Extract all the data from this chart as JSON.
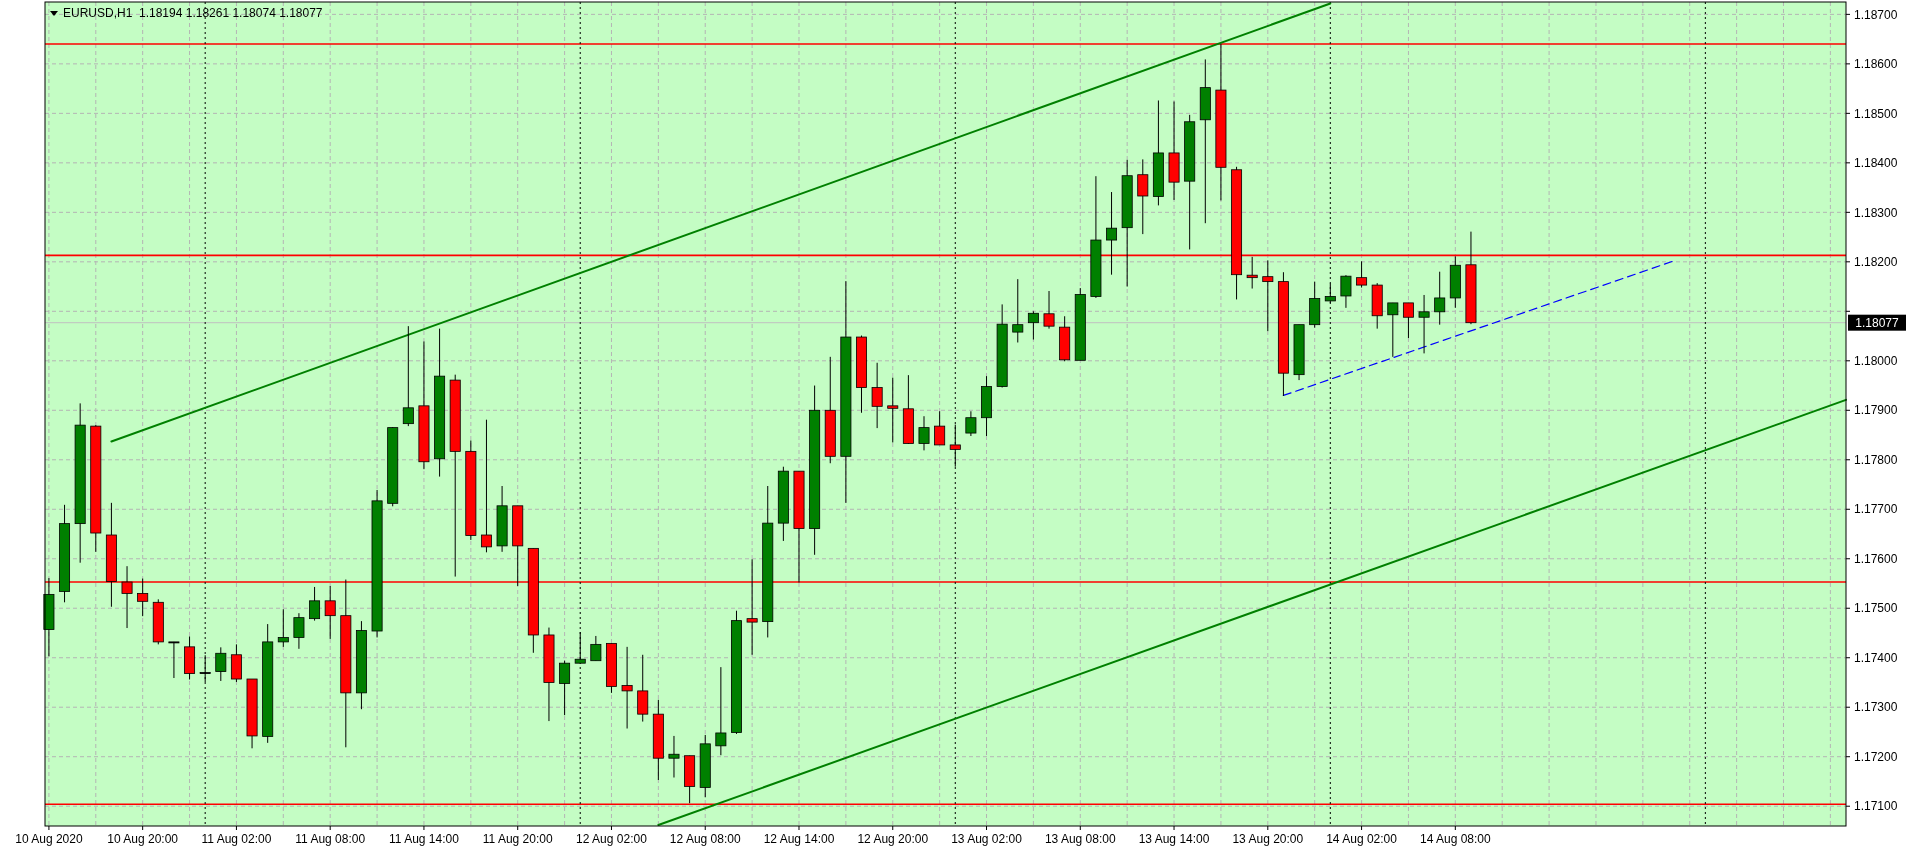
{
  "chart_data": {
    "type": "candlestick",
    "title": "EURUSD,H1  1.18194 1.18261 1.18074 1.18077",
    "x": [
      "2020-08-10T14:00",
      "2020-08-10T15:00",
      "2020-08-10T16:00",
      "2020-08-10T17:00",
      "2020-08-10T18:00",
      "2020-08-10T19:00",
      "2020-08-10T20:00",
      "2020-08-10T21:00",
      "2020-08-10T22:00",
      "2020-08-10T23:00",
      "2020-08-11T00:00",
      "2020-08-11T01:00",
      "2020-08-11T02:00",
      "2020-08-11T03:00",
      "2020-08-11T04:00",
      "2020-08-11T05:00",
      "2020-08-11T06:00",
      "2020-08-11T07:00",
      "2020-08-11T08:00",
      "2020-08-11T09:00",
      "2020-08-11T10:00",
      "2020-08-11T11:00",
      "2020-08-11T12:00",
      "2020-08-11T13:00",
      "2020-08-11T14:00",
      "2020-08-11T15:00",
      "2020-08-11T16:00",
      "2020-08-11T17:00",
      "2020-08-11T18:00",
      "2020-08-11T19:00",
      "2020-08-11T20:00",
      "2020-08-11T21:00",
      "2020-08-11T22:00",
      "2020-08-11T23:00",
      "2020-08-12T00:00",
      "2020-08-12T01:00",
      "2020-08-12T02:00",
      "2020-08-12T03:00",
      "2020-08-12T04:00",
      "2020-08-12T05:00",
      "2020-08-12T06:00",
      "2020-08-12T07:00",
      "2020-08-12T08:00",
      "2020-08-12T09:00",
      "2020-08-12T10:00",
      "2020-08-12T11:00",
      "2020-08-12T12:00",
      "2020-08-12T13:00",
      "2020-08-12T14:00",
      "2020-08-12T15:00",
      "2020-08-12T16:00",
      "2020-08-12T17:00",
      "2020-08-12T18:00",
      "2020-08-12T19:00",
      "2020-08-12T20:00",
      "2020-08-12T21:00",
      "2020-08-12T22:00",
      "2020-08-12T23:00",
      "2020-08-13T00:00",
      "2020-08-13T01:00",
      "2020-08-13T02:00",
      "2020-08-13T03:00",
      "2020-08-13T04:00",
      "2020-08-13T05:00",
      "2020-08-13T06:00",
      "2020-08-13T07:00",
      "2020-08-13T08:00",
      "2020-08-13T09:00",
      "2020-08-13T10:00",
      "2020-08-13T11:00",
      "2020-08-13T12:00",
      "2020-08-13T13:00",
      "2020-08-13T14:00",
      "2020-08-13T15:00",
      "2020-08-13T16:00",
      "2020-08-13T17:00",
      "2020-08-13T18:00",
      "2020-08-13T19:00",
      "2020-08-13T20:00",
      "2020-08-13T21:00",
      "2020-08-13T22:00",
      "2020-08-13T23:00",
      "2020-08-14T00:00",
      "2020-08-14T01:00",
      "2020-08-14T02:00",
      "2020-08-14T03:00",
      "2020-08-14T04:00",
      "2020-08-14T05:00",
      "2020-08-14T06:00",
      "2020-08-14T07:00",
      "2020-08-14T08:00",
      "2020-08-14T09:00"
    ],
    "ohlc": [
      [
        1.17457,
        1.17561,
        1.17403,
        1.17528
      ],
      [
        1.17534,
        1.17709,
        1.17512,
        1.17671
      ],
      [
        1.17671,
        1.17914,
        1.17592,
        1.1787
      ],
      [
        1.17868,
        1.1787,
        1.17614,
        1.17652
      ],
      [
        1.17648,
        1.17713,
        1.17503,
        1.17554
      ],
      [
        1.17553,
        1.17585,
        1.1746,
        1.1753
      ],
      [
        1.1753,
        1.1756,
        1.17484,
        1.17514
      ],
      [
        1.17512,
        1.17518,
        1.17427,
        1.17432
      ],
      [
        1.17432,
        1.17432,
        1.17359,
        1.17432
      ],
      [
        1.17422,
        1.17443,
        1.17356,
        1.17368
      ],
      [
        1.1737,
        1.17405,
        1.17351,
        1.1737
      ],
      [
        1.17372,
        1.17421,
        1.17353,
        1.17409
      ],
      [
        1.17406,
        1.17427,
        1.17351,
        1.17357
      ],
      [
        1.17357,
        1.17357,
        1.17217,
        1.17242
      ],
      [
        1.17241,
        1.17468,
        1.17228,
        1.17432
      ],
      [
        1.17432,
        1.17498,
        1.17422,
        1.17441
      ],
      [
        1.17441,
        1.1749,
        1.17418,
        1.17481
      ],
      [
        1.17479,
        1.17543,
        1.17475,
        1.17515
      ],
      [
        1.17515,
        1.17545,
        1.17438,
        1.17485
      ],
      [
        1.17485,
        1.17558,
        1.17219,
        1.17329
      ],
      [
        1.17329,
        1.17474,
        1.17296,
        1.17455
      ],
      [
        1.17454,
        1.17739,
        1.17441,
        1.17717
      ],
      [
        1.17712,
        1.17866,
        1.17706,
        1.17865
      ],
      [
        1.17873,
        1.1807,
        1.17868,
        1.17905
      ],
      [
        1.17909,
        1.18039,
        1.17781,
        1.17796
      ],
      [
        1.17802,
        1.18065,
        1.17766,
        1.17969
      ],
      [
        1.17961,
        1.17972,
        1.17564,
        1.17817
      ],
      [
        1.17817,
        1.17839,
        1.17638,
        1.17647
      ],
      [
        1.17648,
        1.17881,
        1.17613,
        1.17624
      ],
      [
        1.17626,
        1.17747,
        1.17614,
        1.17707
      ],
      [
        1.17707,
        1.17707,
        1.17545,
        1.17626
      ],
      [
        1.17621,
        1.17621,
        1.1741,
        1.17446
      ],
      [
        1.17446,
        1.17461,
        1.17272,
        1.1735
      ],
      [
        1.17348,
        1.17394,
        1.17284,
        1.17389
      ],
      [
        1.17389,
        1.17452,
        1.17389,
        1.17397
      ],
      [
        1.17394,
        1.17444,
        1.17394,
        1.17427
      ],
      [
        1.17429,
        1.17429,
        1.17329,
        1.17342
      ],
      [
        1.17344,
        1.17422,
        1.17257,
        1.17333
      ],
      [
        1.17333,
        1.17406,
        1.17271,
        1.17286
      ],
      [
        1.17286,
        1.17315,
        1.17153,
        1.17197
      ],
      [
        1.17197,
        1.17242,
        1.17158,
        1.17205
      ],
      [
        1.17202,
        1.17202,
        1.17106,
        1.1714
      ],
      [
        1.17138,
        1.17244,
        1.17118,
        1.17226
      ],
      [
        1.17222,
        1.17381,
        1.17203,
        1.17248
      ],
      [
        1.17249,
        1.17495,
        1.17246,
        1.17475
      ],
      [
        1.17479,
        1.17599,
        1.17406,
        1.17472
      ],
      [
        1.17473,
        1.17747,
        1.17441,
        1.17672
      ],
      [
        1.17672,
        1.17786,
        1.17636,
        1.17777
      ],
      [
        1.17777,
        1.17777,
        1.17552,
        1.17661
      ],
      [
        1.17661,
        1.1795,
        1.17608,
        1.179
      ],
      [
        1.179,
        1.18008,
        1.17793,
        1.17807
      ],
      [
        1.17807,
        1.18161,
        1.17713,
        1.18048
      ],
      [
        1.18048,
        1.18051,
        1.17895,
        1.17946
      ],
      [
        1.17946,
        1.17996,
        1.17864,
        1.17908
      ],
      [
        1.17909,
        1.17966,
        1.17835,
        1.17904
      ],
      [
        1.17903,
        1.17971,
        1.17832,
        1.17833
      ],
      [
        1.17833,
        1.17888,
        1.17819,
        1.17865
      ],
      [
        1.17868,
        1.17898,
        1.1783,
        1.1783
      ],
      [
        1.1783,
        1.17871,
        1.17786,
        1.17821
      ],
      [
        1.17854,
        1.17898,
        1.17848,
        1.17885
      ],
      [
        1.17885,
        1.17969,
        1.17848,
        1.17948
      ],
      [
        1.17948,
        1.18114,
        1.17946,
        1.18074
      ],
      [
        1.18058,
        1.18165,
        1.18037,
        1.18073
      ],
      [
        1.18077,
        1.181,
        1.18043,
        1.18096
      ],
      [
        1.18095,
        1.18141,
        1.18065,
        1.1807
      ],
      [
        1.18068,
        1.1809,
        1.17999,
        1.18002
      ],
      [
        1.18001,
        1.18147,
        1.18001,
        1.18134
      ],
      [
        1.1813,
        1.18373,
        1.18127,
        1.18244
      ],
      [
        1.18244,
        1.18341,
        1.18174,
        1.18268
      ],
      [
        1.18269,
        1.18406,
        1.1815,
        1.18374
      ],
      [
        1.18376,
        1.18407,
        1.18256,
        1.18333
      ],
      [
        1.18332,
        1.18526,
        1.18314,
        1.1842
      ],
      [
        1.1842,
        1.18524,
        1.18325,
        1.18361
      ],
      [
        1.18363,
        1.18497,
        1.18225,
        1.18483
      ],
      [
        1.18487,
        1.18609,
        1.18278,
        1.18552
      ],
      [
        1.18547,
        1.1864,
        1.18324,
        1.18391
      ],
      [
        1.18386,
        1.18392,
        1.18124,
        1.18174
      ],
      [
        1.18173,
        1.1821,
        1.18146,
        1.18168
      ],
      [
        1.1817,
        1.18203,
        1.1806,
        1.1816
      ],
      [
        1.1816,
        1.18179,
        1.17929,
        1.17975
      ],
      [
        1.17972,
        1.18073,
        1.17961,
        1.18073
      ],
      [
        1.18073,
        1.1816,
        1.18067,
        1.18126
      ],
      [
        1.18121,
        1.18156,
        1.18117,
        1.1813
      ],
      [
        1.18131,
        1.18173,
        1.18107,
        1.18171
      ],
      [
        1.18168,
        1.18201,
        1.18148,
        1.18153
      ],
      [
        1.18153,
        1.18157,
        1.18065,
        1.18091
      ],
      [
        1.18093,
        1.18117,
        1.18008,
        1.18117
      ],
      [
        1.18117,
        1.18117,
        1.18046,
        1.18088
      ],
      [
        1.18088,
        1.18133,
        1.18015,
        1.18099
      ],
      [
        1.18099,
        1.1818,
        1.18073,
        1.18127
      ],
      [
        1.18127,
        1.18211,
        1.18107,
        1.18193
      ],
      [
        1.18194,
        1.18261,
        1.18074,
        1.18077
      ]
    ],
    "colors": [
      "#008000",
      "#008000",
      "#008000",
      "#ff0000",
      "#ff0000",
      "#ff0000",
      "#ff0000",
      "#ff0000",
      "#000000",
      "#ff0000",
      "#000000",
      "#008000",
      "#ff0000",
      "#ff0000",
      "#008000",
      "#008000",
      "#008000",
      "#008000",
      "#ff0000",
      "#ff0000",
      "#008000",
      "#008000",
      "#008000",
      "#008000",
      "#ff0000",
      "#008000",
      "#ff0000",
      "#ff0000",
      "#ff0000",
      "#008000",
      "#ff0000",
      "#ff0000",
      "#ff0000",
      "#008000",
      "#008000",
      "#008000",
      "#ff0000",
      "#ff0000",
      "#ff0000",
      "#ff0000",
      "#008000",
      "#ff0000",
      "#008000",
      "#008000",
      "#008000",
      "#ff0000",
      "#008000",
      "#008000",
      "#ff0000",
      "#008000",
      "#ff0000",
      "#008000",
      "#ff0000",
      "#ff0000",
      "#ff0000",
      "#ff0000",
      "#008000",
      "#ff0000",
      "#ff0000",
      "#008000",
      "#008000",
      "#008000",
      "#008000",
      "#008000",
      "#ff0000",
      "#ff0000",
      "#008000",
      "#008000",
      "#008000",
      "#008000",
      "#ff0000",
      "#008000",
      "#ff0000",
      "#008000",
      "#008000",
      "#ff0000",
      "#ff0000",
      "#ff0000",
      "#ff0000",
      "#ff0000",
      "#008000",
      "#008000",
      "#008000",
      "#008000",
      "#ff0000",
      "#ff0000",
      "#008000",
      "#ff0000",
      "#008000",
      "#008000",
      "#008000",
      "#ff0000"
    ],
    "series": [
      {
        "type": "line",
        "color": "#008000",
        "x": [
          "2020-08-10T18:00",
          "2020-08-14T00:00"
        ],
        "values": [
          1.17837,
          1.18722
        ]
      },
      {
        "type": "line",
        "color": "#008000",
        "x": [
          "2020-08-12T05:00",
          "2020-08-15T09:00"
        ],
        "values": [
          1.17062,
          1.17921
        ]
      },
      {
        "type": "line",
        "color": "#0000ff",
        "line_style": "dashed",
        "x": [
          "2020-08-13T21:00",
          "2020-08-14T22:00"
        ],
        "values": [
          1.1793,
          1.18202
        ]
      }
    ],
    "ref_lines": [
      {
        "axis": "y",
        "value": 1.1864,
        "color": "#ff0000"
      },
      {
        "axis": "y",
        "value": 1.18213,
        "color": "#ff0000"
      },
      {
        "axis": "y",
        "value": 1.17553,
        "color": "#ff0000"
      },
      {
        "axis": "y",
        "value": 1.17104,
        "color": "#ff0000"
      },
      {
        "axis": "y",
        "value": 1.18077,
        "label": "1.18077",
        "color": "#c0c0c0"
      },
      {
        "axis": "x",
        "value": "2020-08-11T00:00",
        "color": "#000000",
        "line_style": "dotted"
      },
      {
        "axis": "x",
        "value": "2020-08-12T00:00",
        "color": "#000000",
        "line_style": "dotted"
      },
      {
        "axis": "x",
        "value": "2020-08-13T00:00",
        "color": "#000000",
        "line_style": "dotted"
      },
      {
        "axis": "x",
        "value": "2020-08-14T00:00",
        "color": "#000000",
        "line_style": "dotted"
      },
      {
        "axis": "x",
        "value": "2020-08-15T00:00",
        "color": "#000000",
        "line_style": "dotted"
      }
    ],
    "xlim": [
      "2020-08-10T13:45",
      "2020-08-15T09:00"
    ],
    "ylim": [
      1.1706,
      1.18725
    ],
    "xticks": [
      {
        "value": "2020-08-10T14:00",
        "label": "10 Aug 2020"
      },
      {
        "value": "2020-08-10T17:00",
        "label": null
      },
      {
        "value": "2020-08-10T20:00",
        "label": "10 Aug 20:00"
      },
      {
        "value": "2020-08-10T23:00",
        "label": null
      },
      {
        "value": "2020-08-11T02:00",
        "label": "11 Aug 02:00"
      },
      {
        "value": "2020-08-11T05:00",
        "label": null
      },
      {
        "value": "2020-08-11T08:00",
        "label": "11 Aug 08:00"
      },
      {
        "value": "2020-08-11T11:00",
        "label": null
      },
      {
        "value": "2020-08-11T14:00",
        "label": "11 Aug 14:00"
      },
      {
        "value": "2020-08-11T17:00",
        "label": null
      },
      {
        "value": "2020-08-11T20:00",
        "label": "11 Aug 20:00"
      },
      {
        "value": "2020-08-11T23:00",
        "label": null
      },
      {
        "value": "2020-08-12T02:00",
        "label": "12 Aug 02:00"
      },
      {
        "value": "2020-08-12T05:00",
        "label": null
      },
      {
        "value": "2020-08-12T08:00",
        "label": "12 Aug 08:00"
      },
      {
        "value": "2020-08-12T11:00",
        "label": null
      },
      {
        "value": "2020-08-12T14:00",
        "label": "12 Aug 14:00"
      },
      {
        "value": "2020-08-12T17:00",
        "label": null
      },
      {
        "value": "2020-08-12T20:00",
        "label": "12 Aug 20:00"
      },
      {
        "value": "2020-08-12T23:00",
        "label": null
      },
      {
        "value": "2020-08-13T02:00",
        "label": "13 Aug 02:00"
      },
      {
        "value": "2020-08-13T05:00",
        "label": null
      },
      {
        "value": "2020-08-13T08:00",
        "label": "13 Aug 08:00"
      },
      {
        "value": "2020-08-13T11:00",
        "label": null
      },
      {
        "value": "2020-08-13T14:00",
        "label": "13 Aug 14:00"
      },
      {
        "value": "2020-08-13T17:00",
        "label": null
      },
      {
        "value": "2020-08-13T20:00",
        "label": "13 Aug 20:00"
      },
      {
        "value": "2020-08-13T23:00",
        "label": null
      },
      {
        "value": "2020-08-14T02:00",
        "label": "14 Aug 02:00"
      },
      {
        "value": "2020-08-14T05:00",
        "label": null
      },
      {
        "value": "2020-08-14T08:00",
        "label": "14 Aug 08:00"
      },
      {
        "value": "2020-08-14T11:00",
        "label": null
      },
      {
        "value": "2020-08-14T14:00",
        "label": null
      },
      {
        "value": "2020-08-14T17:00",
        "label": null
      },
      {
        "value": "2020-08-14T20:00",
        "label": null
      },
      {
        "value": "2020-08-14T23:00",
        "label": null
      },
      {
        "value": "2020-08-15T02:00",
        "label": null
      },
      {
        "value": "2020-08-15T05:00",
        "label": null
      },
      {
        "value": "2020-08-15T08:00",
        "label": null
      }
    ],
    "yticks": [
      {
        "value": 1.171,
        "label": "1.17100"
      },
      {
        "value": 1.172,
        "label": "1.17200"
      },
      {
        "value": 1.173,
        "label": "1.17300"
      },
      {
        "value": 1.174,
        "label": "1.17400"
      },
      {
        "value": 1.175,
        "label": "1.17500"
      },
      {
        "value": 1.176,
        "label": "1.17600"
      },
      {
        "value": 1.177,
        "label": "1.17700"
      },
      {
        "value": 1.178,
        "label": "1.17800"
      },
      {
        "value": 1.179,
        "label": "1.17900"
      },
      {
        "value": 1.18,
        "label": "1.18000"
      },
      {
        "value": 1.181,
        "label": null
      },
      {
        "value": 1.182,
        "label": "1.18200"
      },
      {
        "value": 1.183,
        "label": "1.18300"
      },
      {
        "value": 1.184,
        "label": "1.18400"
      },
      {
        "value": 1.185,
        "label": "1.18500"
      },
      {
        "value": 1.186,
        "label": "1.18600"
      },
      {
        "value": 1.187,
        "label": "1.18700"
      }
    ],
    "grid": true
  }
}
